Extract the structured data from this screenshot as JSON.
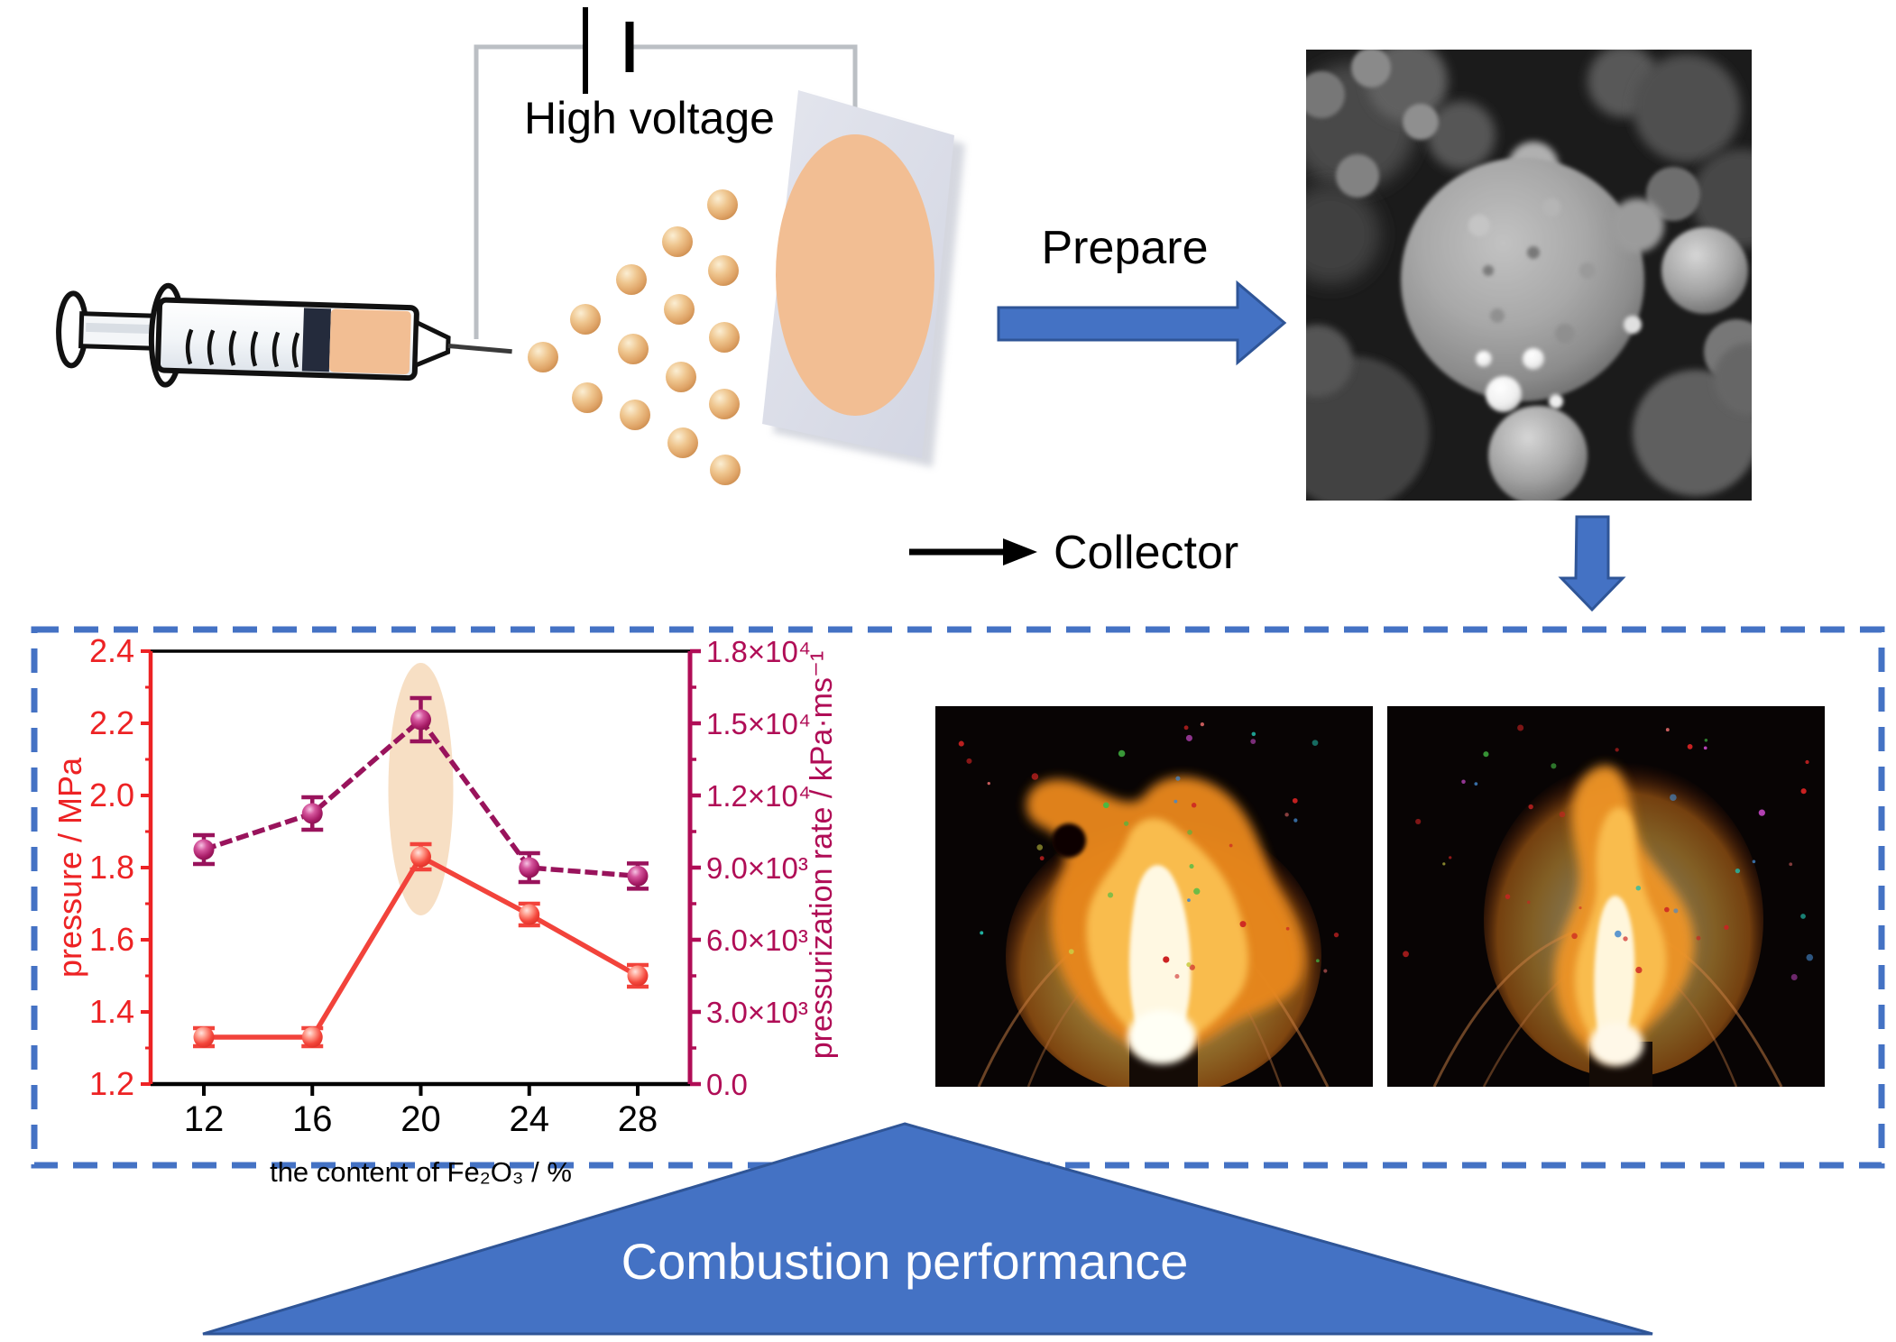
{
  "figure": {
    "high_voltage_label": "High voltage",
    "collector_label": "Collector",
    "prepare_label": "Prepare",
    "banner_label": "Combustion performance"
  },
  "colors": {
    "accent_blue": "#4472C4",
    "accent_blue_dark": "#2F5597",
    "wire_gray": "#BBBFC4",
    "collector_plate": "#DCDEE8",
    "peach": "#F2BE93",
    "droplet_peach": "#E8B477",
    "axis_red": "#ED2224",
    "axis_magenta": "#B00D56",
    "series_red": "#F2433B",
    "series_purple": "#99135C",
    "highlight_peach": "#F7DFC4",
    "banner_text": "#FFFFFF"
  },
  "chart_data": {
    "type": "line",
    "x": [
      12,
      16,
      20,
      24,
      28
    ],
    "x_ticks": [
      "12",
      "16",
      "20",
      "24",
      "28"
    ],
    "xlabel": "the content of Fe₂O₃ / %",
    "series": [
      {
        "name": "pressure",
        "axis": "left",
        "color": "#F2433B",
        "line_style": "solid",
        "values": [
          1.33,
          1.33,
          1.83,
          1.67,
          1.5
        ],
        "errors": [
          0.025,
          0.025,
          0.035,
          0.03,
          0.03
        ]
      },
      {
        "name": "pressurization rate",
        "axis": "right",
        "color": "#99135C",
        "line_style": "dashed",
        "values": [
          9750,
          11250,
          15150,
          9000,
          8650
        ],
        "errors": [
          600,
          675,
          900,
          600,
          525
        ]
      }
    ],
    "left_axis": {
      "label": "pressure / MPa",
      "min": 1.2,
      "max": 2.4,
      "tick_step": 0.2,
      "ticks": [
        "1.2",
        "1.4",
        "1.6",
        "1.8",
        "2.0",
        "2.2",
        "2.4"
      ],
      "color": "#ED2224"
    },
    "right_axis": {
      "label": "pressurization rate / kPa·ms⁻¹",
      "min": 0,
      "max": 18000,
      "tick_step": 3000,
      "ticks": [
        "0.0",
        "3.0×10³",
        "6.0×10³",
        "9.0×10³",
        "1.2×10⁴",
        "1.5×10⁴",
        "1.8×10⁴"
      ],
      "color": "#B00D56"
    },
    "highlight_x": 20,
    "grid": false,
    "legend": null
  }
}
